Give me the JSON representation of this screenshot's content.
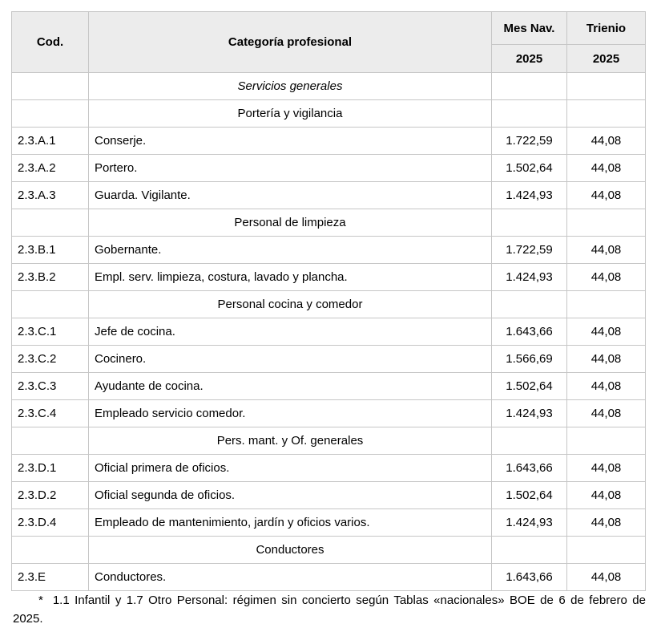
{
  "colors": {
    "header_bg": "#ececec",
    "border": "#c6c6c6",
    "text": "#000000",
    "page_bg": "#ffffff"
  },
  "table": {
    "header": {
      "col_cod": "Cod.",
      "col_categoria": "Categoría profesional",
      "col_mes_nav": "Mes Nav.",
      "col_trienio": "Trienio",
      "year_mes_nav": "2025",
      "year_trienio": "2025"
    },
    "rows": [
      {
        "type": "section-italic",
        "label": "Servicios generales"
      },
      {
        "type": "section",
        "label": "Portería y vigilancia"
      },
      {
        "type": "data",
        "cod": "2.3.A.1",
        "categoria": "Conserje.",
        "mes_nav": "1.722,59",
        "trienio": "44,08"
      },
      {
        "type": "data",
        "cod": "2.3.A.2",
        "categoria": "Portero.",
        "mes_nav": "1.502,64",
        "trienio": "44,08"
      },
      {
        "type": "data",
        "cod": "2.3.A.3",
        "categoria": "Guarda. Vigilante.",
        "mes_nav": "1.424,93",
        "trienio": "44,08"
      },
      {
        "type": "section",
        "label": "Personal de limpieza"
      },
      {
        "type": "data",
        "cod": "2.3.B.1",
        "categoria": "Gobernante.",
        "mes_nav": "1.722,59",
        "trienio": "44,08"
      },
      {
        "type": "data",
        "cod": "2.3.B.2",
        "categoria": "Empl. serv. limpieza, costura, lavado y plancha.",
        "mes_nav": "1.424,93",
        "trienio": "44,08"
      },
      {
        "type": "section",
        "label": "Personal cocina y comedor"
      },
      {
        "type": "data",
        "cod": "2.3.C.1",
        "categoria": "Jefe de cocina.",
        "mes_nav": "1.643,66",
        "trienio": "44,08"
      },
      {
        "type": "data",
        "cod": "2.3.C.2",
        "categoria": "Cocinero.",
        "mes_nav": "1.566,69",
        "trienio": "44,08"
      },
      {
        "type": "data",
        "cod": "2.3.C.3",
        "categoria": "Ayudante de cocina.",
        "mes_nav": "1.502,64",
        "trienio": "44,08"
      },
      {
        "type": "data",
        "cod": "2.3.C.4",
        "categoria": "Empleado servicio comedor.",
        "mes_nav": "1.424,93",
        "trienio": "44,08"
      },
      {
        "type": "section",
        "label": "Pers. mant. y Of. generales"
      },
      {
        "type": "data",
        "cod": "2.3.D.1",
        "categoria": "Oficial primera de oficios.",
        "mes_nav": "1.643,66",
        "trienio": "44,08"
      },
      {
        "type": "data",
        "cod": "2.3.D.2",
        "categoria": "Oficial segunda de oficios.",
        "mes_nav": "1.502,64",
        "trienio": "44,08"
      },
      {
        "type": "data",
        "cod": "2.3.D.4",
        "categoria": "Empleado de mantenimiento, jardín y oficios varios.",
        "mes_nav": "1.424,93",
        "trienio": "44,08"
      },
      {
        "type": "section",
        "label": "Conductores"
      },
      {
        "type": "data",
        "cod": "2.3.E",
        "categoria": "Conductores.",
        "mes_nav": "1.643,66",
        "trienio": "44,08"
      }
    ]
  },
  "footnote": {
    "marker": "*",
    "text": "1.1 Infantil y 1.7 Otro Personal: régimen sin concierto según Tablas «nacionales» BOE de 6 de febrero de 2025."
  }
}
